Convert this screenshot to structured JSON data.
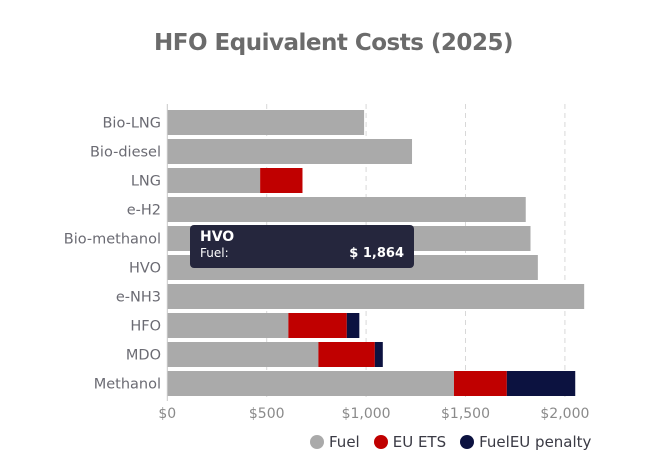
{
  "chart_data": {
    "type": "bar",
    "orientation": "horizontal",
    "stacked": true,
    "title": "HFO Equivalent Costs (2025)",
    "categories": [
      "Bio-LNG",
      "Bio-diesel",
      "LNG",
      "e-H2",
      "Bio-methanol",
      "HVO",
      "e-NH3",
      "HFO",
      "MDO",
      "Methanol"
    ],
    "series": [
      {
        "name": "Fuel",
        "color": "#aaaaaa",
        "values": [
          990,
          1231,
          467,
          1803,
          1827,
          1864,
          2097,
          609,
          760,
          1442
        ]
      },
      {
        "name": "EU ETS",
        "color": "#c00000",
        "values": [
          0,
          0,
          213,
          0,
          0,
          0,
          0,
          294,
          284,
          266
        ]
      },
      {
        "name": "FuelEU penalty",
        "color": "#0c1240",
        "values": [
          0,
          0,
          0,
          0,
          0,
          0,
          0,
          63,
          40,
          344
        ]
      }
    ],
    "xlim": [
      0,
      2250
    ],
    "xticks": [
      0,
      500,
      1000,
      1500,
      2000
    ],
    "xtick_labels": [
      "$0",
      "$500",
      "$1,000",
      "$1,500",
      "$2,000"
    ],
    "grid": "vertical dashed",
    "legend": "bottom-right",
    "tooltip": {
      "title": "HVO",
      "label": "Fuel:",
      "value": "$ 1,864"
    }
  }
}
